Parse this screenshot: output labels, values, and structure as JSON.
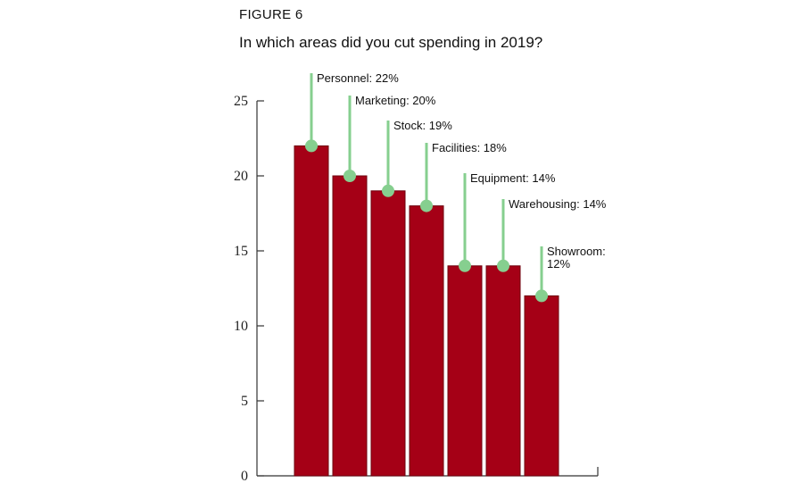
{
  "figure": {
    "label": "FIGURE 6",
    "title": "In which areas did you cut spending in 2019?"
  },
  "colors": {
    "bar": "#a50016",
    "bar_stroke": "#6e000d",
    "pin": "#86cf8f",
    "axis": "#333333"
  },
  "chart_data": {
    "type": "bar",
    "title": "In which areas did you cut spending in 2019?",
    "xlabel": "",
    "ylabel": "",
    "ylim": [
      0,
      25
    ],
    "yticks": [
      0,
      5,
      10,
      15,
      20,
      25
    ],
    "grid": false,
    "categories": [
      "Personnel",
      "Marketing",
      "Stock",
      "Facilities",
      "Equipment",
      "Warehousing",
      "Showroom"
    ],
    "values": [
      22,
      20,
      19,
      18,
      14,
      14,
      12
    ],
    "labels": [
      [
        "Personnel: 22%"
      ],
      [
        "Marketing: 20%"
      ],
      [
        "Stock: 19%"
      ],
      [
        "Facilities: 18%"
      ],
      [
        "Equipment: 14%"
      ],
      [
        "Warehousing: 14%"
      ],
      [
        "Showroom:",
        "12%"
      ]
    ]
  }
}
